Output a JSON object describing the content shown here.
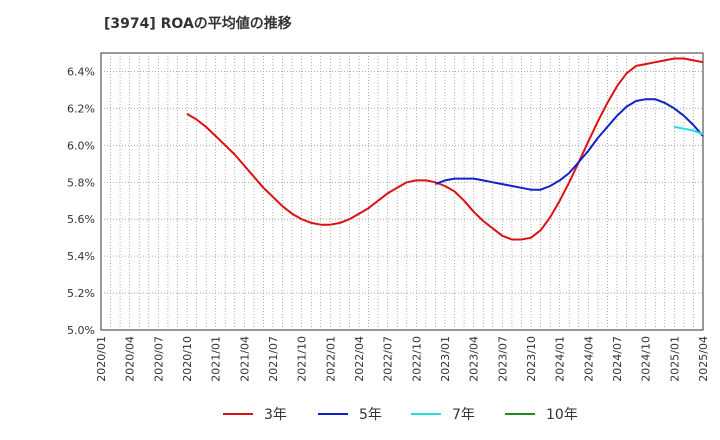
{
  "chart_data": {
    "type": "line",
    "title": "[3974]  ROAの平均値の推移",
    "xlabel": "",
    "ylabel": "",
    "ylim": [
      5.0,
      6.5
    ],
    "y_ticks": [
      "5.0%",
      "5.2%",
      "5.4%",
      "5.6%",
      "5.8%",
      "6.0%",
      "6.2%",
      "6.4%"
    ],
    "y_tick_values": [
      5.0,
      5.2,
      5.4,
      5.6,
      5.8,
      6.0,
      6.2,
      6.4
    ],
    "x_ticks": [
      "2020/01",
      "2020/04",
      "2020/07",
      "2020/10",
      "2021/01",
      "2021/04",
      "2021/07",
      "2021/10",
      "2022/01",
      "2022/04",
      "2022/07",
      "2022/10",
      "2023/01",
      "2023/04",
      "2023/07",
      "2023/10",
      "2024/01",
      "2024/04",
      "2024/07",
      "2024/10",
      "2025/01",
      "2025/04"
    ],
    "grid": true,
    "legend_position": "bottom",
    "series": [
      {
        "name": "3年",
        "color": "#dd1111",
        "points": [
          [
            "2020/10",
            6.17
          ],
          [
            "2020/11",
            6.14
          ],
          [
            "2020/12",
            6.1
          ],
          [
            "2021/01",
            6.05
          ],
          [
            "2021/02",
            6.0
          ],
          [
            "2021/03",
            5.95
          ],
          [
            "2021/04",
            5.89
          ],
          [
            "2021/05",
            5.83
          ],
          [
            "2021/06",
            5.77
          ],
          [
            "2021/07",
            5.72
          ],
          [
            "2021/08",
            5.67
          ],
          [
            "2021/09",
            5.63
          ],
          [
            "2021/10",
            5.6
          ],
          [
            "2021/11",
            5.58
          ],
          [
            "2021/12",
            5.57
          ],
          [
            "2022/01",
            5.57
          ],
          [
            "2022/02",
            5.58
          ],
          [
            "2022/03",
            5.6
          ],
          [
            "2022/04",
            5.63
          ],
          [
            "2022/05",
            5.66
          ],
          [
            "2022/06",
            5.7
          ],
          [
            "2022/07",
            5.74
          ],
          [
            "2022/08",
            5.77
          ],
          [
            "2022/09",
            5.8
          ],
          [
            "2022/10",
            5.81
          ],
          [
            "2022/11",
            5.81
          ],
          [
            "2022/12",
            5.8
          ],
          [
            "2023/01",
            5.78
          ],
          [
            "2023/02",
            5.75
          ],
          [
            "2023/03",
            5.7
          ],
          [
            "2023/04",
            5.64
          ],
          [
            "2023/05",
            5.59
          ],
          [
            "2023/06",
            5.55
          ],
          [
            "2023/07",
            5.51
          ],
          [
            "2023/08",
            5.49
          ],
          [
            "2023/09",
            5.49
          ],
          [
            "2023/10",
            5.5
          ],
          [
            "2023/11",
            5.54
          ],
          [
            "2023/12",
            5.61
          ],
          [
            "2024/01",
            5.7
          ],
          [
            "2024/02",
            5.8
          ],
          [
            "2024/03",
            5.91
          ],
          [
            "2024/04",
            6.02
          ],
          [
            "2024/05",
            6.13
          ],
          [
            "2024/06",
            6.23
          ],
          [
            "2024/07",
            6.32
          ],
          [
            "2024/08",
            6.39
          ],
          [
            "2024/09",
            6.43
          ],
          [
            "2024/10",
            6.44
          ],
          [
            "2024/11",
            6.45
          ],
          [
            "2024/12",
            6.46
          ],
          [
            "2025/01",
            6.47
          ],
          [
            "2025/02",
            6.47
          ],
          [
            "2025/03",
            6.46
          ],
          [
            "2025/04",
            6.45
          ]
        ]
      },
      {
        "name": "5年",
        "color": "#1122cc",
        "points": [
          [
            "2022/12",
            5.79
          ],
          [
            "2023/01",
            5.81
          ],
          [
            "2023/02",
            5.82
          ],
          [
            "2023/03",
            5.82
          ],
          [
            "2023/04",
            5.82
          ],
          [
            "2023/05",
            5.81
          ],
          [
            "2023/06",
            5.8
          ],
          [
            "2023/07",
            5.79
          ],
          [
            "2023/08",
            5.78
          ],
          [
            "2023/09",
            5.77
          ],
          [
            "2023/10",
            5.76
          ],
          [
            "2023/11",
            5.76
          ],
          [
            "2023/12",
            5.78
          ],
          [
            "2024/01",
            5.81
          ],
          [
            "2024/02",
            5.85
          ],
          [
            "2024/03",
            5.91
          ],
          [
            "2024/04",
            5.97
          ],
          [
            "2024/05",
            6.04
          ],
          [
            "2024/06",
            6.1
          ],
          [
            "2024/07",
            6.16
          ],
          [
            "2024/08",
            6.21
          ],
          [
            "2024/09",
            6.24
          ],
          [
            "2024/10",
            6.25
          ],
          [
            "2024/11",
            6.25
          ],
          [
            "2024/12",
            6.23
          ],
          [
            "2025/01",
            6.2
          ],
          [
            "2025/02",
            6.16
          ],
          [
            "2025/03",
            6.11
          ],
          [
            "2025/04",
            6.05
          ]
        ]
      },
      {
        "name": "7年",
        "color": "#22dddd",
        "points": [
          [
            "2025/01",
            6.1
          ],
          [
            "2025/02",
            6.09
          ],
          [
            "2025/03",
            6.08
          ],
          [
            "2025/04",
            6.06
          ]
        ]
      },
      {
        "name": "10年",
        "color": "#228822",
        "points": []
      }
    ]
  }
}
